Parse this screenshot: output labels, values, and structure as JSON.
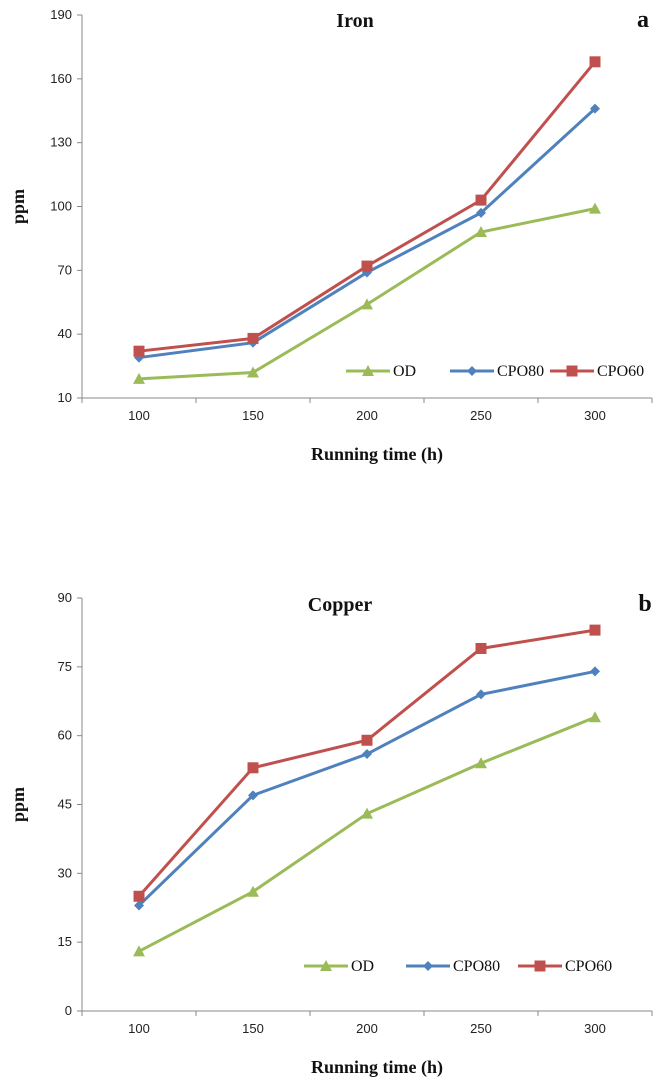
{
  "chart_data": [
    {
      "type": "line",
      "panel_label": "a",
      "title": "Iron",
      "xlabel": "Running time (h)",
      "ylabel": "ppm",
      "categories": [
        "100",
        "150",
        "200",
        "250",
        "300"
      ],
      "ylim": [
        10,
        190
      ],
      "yticks": [
        "10",
        "40",
        "70",
        "100",
        "130",
        "160",
        "190"
      ],
      "grid": false,
      "legend_position": "bottom-right",
      "series": [
        {
          "name": "OD",
          "color": "#9BBB59",
          "marker": "triangle",
          "values": [
            19,
            22,
            54,
            88,
            99
          ]
        },
        {
          "name": "CPO80",
          "color": "#4F81BD",
          "marker": "diamond",
          "values": [
            29,
            36,
            69,
            97,
            146
          ]
        },
        {
          "name": "CPO60",
          "color": "#C0504D",
          "marker": "square",
          "values": [
            32,
            38,
            72,
            103,
            168
          ]
        }
      ]
    },
    {
      "type": "line",
      "panel_label": "b",
      "title": "Copper",
      "xlabel": "Running time (h)",
      "ylabel": "ppm",
      "categories": [
        "100",
        "150",
        "200",
        "250",
        "300"
      ],
      "ylim": [
        0,
        90
      ],
      "yticks": [
        "0",
        "15",
        "30",
        "45",
        "60",
        "75",
        "90"
      ],
      "grid": false,
      "legend_position": "bottom-right",
      "series": [
        {
          "name": "OD",
          "color": "#9BBB59",
          "marker": "triangle",
          "values": [
            13,
            26,
            43,
            54,
            64
          ]
        },
        {
          "name": "CPO80",
          "color": "#4F81BD",
          "marker": "diamond",
          "values": [
            23,
            47,
            56,
            69,
            74
          ]
        },
        {
          "name": "CPO60",
          "color": "#C0504D",
          "marker": "square",
          "values": [
            25,
            53,
            59,
            79,
            83
          ]
        }
      ]
    }
  ]
}
